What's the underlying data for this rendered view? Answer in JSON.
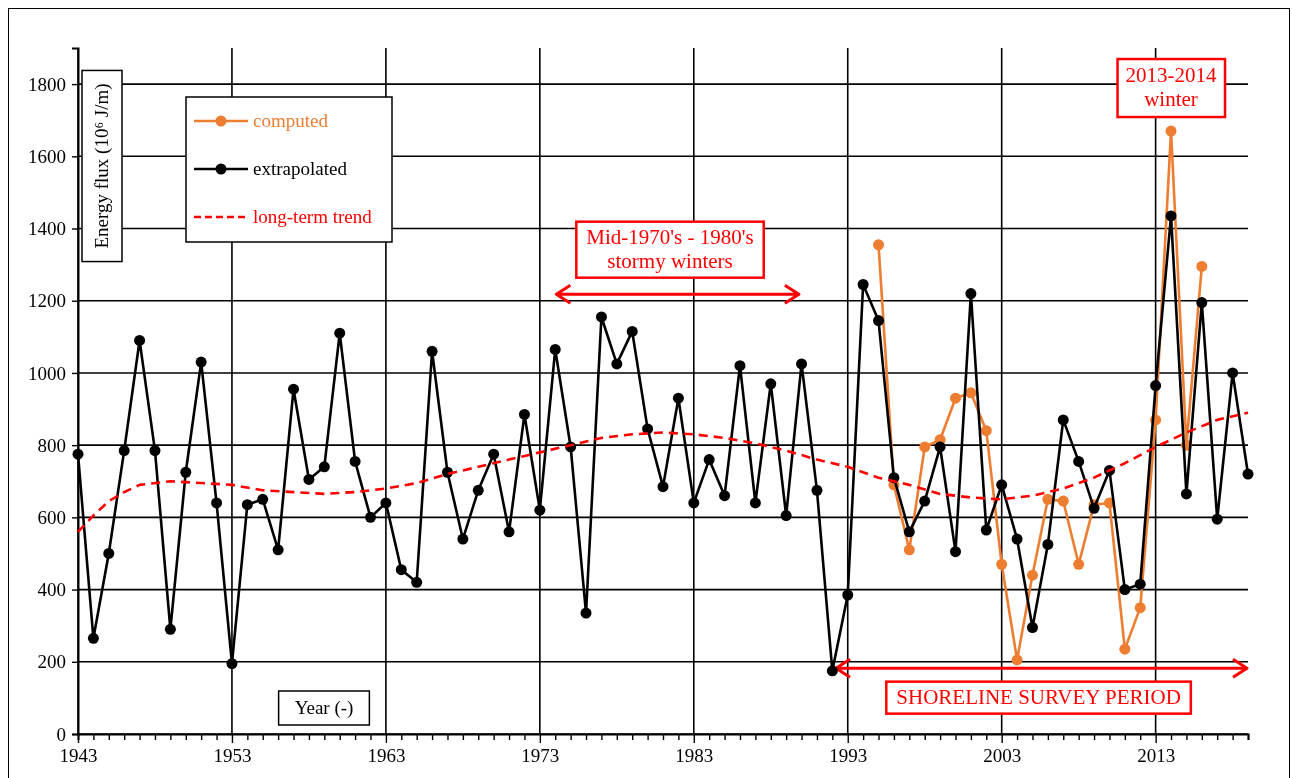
{
  "chart_data": {
    "type": "line",
    "xlabel": "Year (-)",
    "ylabel": "Energy flux (10⁶ J/m)",
    "xlim": [
      1943,
      2019
    ],
    "xticks": [
      1943,
      {
        "value": 1944,
        "label": null
      },
      {
        "value": 1945,
        "label": null
      },
      {
        "value": 1946,
        "label": null
      },
      {
        "value": 1947,
        "label": null
      },
      {
        "value": 1948,
        "label": null
      },
      {
        "value": 1949,
        "label": null
      },
      {
        "value": 1950,
        "label": null
      },
      {
        "value": 1951,
        "label": null
      },
      {
        "value": 1952,
        "label": null
      },
      1953,
      {
        "value": 1954,
        "label": null
      },
      {
        "value": 1955,
        "label": null
      },
      {
        "value": 1956,
        "label": null
      },
      {
        "value": 1957,
        "label": null
      },
      {
        "value": 1958,
        "label": null
      },
      {
        "value": 1959,
        "label": null
      },
      {
        "value": 1960,
        "label": null
      },
      {
        "value": 1961,
        "label": null
      },
      {
        "value": 1962,
        "label": null
      },
      1963,
      {
        "value": 1964,
        "label": null
      },
      {
        "value": 1965,
        "label": null
      },
      {
        "value": 1966,
        "label": null
      },
      {
        "value": 1967,
        "label": null
      },
      {
        "value": 1968,
        "label": null
      },
      {
        "value": 1969,
        "label": null
      },
      {
        "value": 1970,
        "label": null
      },
      {
        "value": 1971,
        "label": null
      },
      {
        "value": 1972,
        "label": null
      },
      1973,
      {
        "value": 1974,
        "label": null
      },
      {
        "value": 1975,
        "label": null
      },
      {
        "value": 1976,
        "label": null
      },
      {
        "value": 1977,
        "label": null
      },
      {
        "value": 1978,
        "label": null
      },
      {
        "value": 1979,
        "label": null
      },
      {
        "value": 1980,
        "label": null
      },
      {
        "value": 1981,
        "label": null
      },
      {
        "value": 1982,
        "label": null
      },
      1983,
      {
        "value": 1984,
        "label": null
      },
      {
        "value": 1985,
        "label": null
      },
      {
        "value": 1986,
        "label": null
      },
      {
        "value": 1987,
        "label": null
      },
      {
        "value": 1988,
        "label": null
      },
      {
        "value": 1989,
        "label": null
      },
      {
        "value": 1990,
        "label": null
      },
      {
        "value": 1991,
        "label": null
      },
      {
        "value": 1992,
        "label": null
      },
      1993,
      {
        "value": 1994,
        "label": null
      },
      {
        "value": 1995,
        "label": null
      },
      {
        "value": 1996,
        "label": null
      },
      {
        "value": 1997,
        "label": null
      },
      {
        "value": 1998,
        "label": null
      },
      {
        "value": 1999,
        "label": null
      },
      {
        "value": 2000,
        "label": null
      },
      {
        "value": 2001,
        "label": null
      },
      {
        "value": 2002,
        "label": null
      },
      2003,
      {
        "value": 2004,
        "label": null
      },
      {
        "value": 2005,
        "label": null
      },
      {
        "value": 2006,
        "label": null
      },
      {
        "value": 2007,
        "label": null
      },
      {
        "value": 2008,
        "label": null
      },
      {
        "value": 2009,
        "label": null
      },
      {
        "value": 2010,
        "label": null
      },
      {
        "value": 2011,
        "label": null
      },
      {
        "value": 2012,
        "label": null
      },
      2013,
      {
        "value": 2014,
        "label": null
      },
      {
        "value": 2015,
        "label": null
      },
      {
        "value": 2016,
        "label": null
      },
      {
        "value": 2017,
        "label": null
      },
      {
        "value": 2018,
        "label": null
      },
      {
        "value": 2019,
        "label": null
      }
    ],
    "ylim": [
      0,
      1900
    ],
    "yticks": [
      0,
      200,
      400,
      600,
      800,
      1000,
      1200,
      1400,
      1600,
      1800
    ],
    "grid": true,
    "legend": "top left",
    "series": [
      {
        "name": "computed",
        "color": "#ed7d31",
        "marker": "circle",
        "line_style": "solid",
        "x": [
          1995,
          1996,
          1997,
          1998,
          1999,
          2000,
          2001,
          2002,
          2003,
          2004,
          2005,
          2006,
          2007,
          2008,
          2009,
          2010,
          2011,
          2012,
          2013,
          2014,
          2015,
          2016
        ],
        "values": [
          1355,
          690,
          510,
          795,
          815,
          930,
          945,
          840,
          470,
          205,
          440,
          650,
          645,
          470,
          635,
          640,
          235,
          350,
          870,
          1670,
          800,
          1295
        ]
      },
      {
        "name": "extrapolated",
        "color": "#000000",
        "marker": "circle",
        "line_style": "solid",
        "x": [
          1943,
          1944,
          1945,
          1946,
          1947,
          1948,
          1949,
          1950,
          1951,
          1952,
          1953,
          1954,
          1955,
          1956,
          1957,
          1958,
          1959,
          1960,
          1961,
          1962,
          1963,
          1964,
          1965,
          1966,
          1967,
          1968,
          1969,
          1970,
          1971,
          1972,
          1973,
          1974,
          1975,
          1976,
          1977,
          1978,
          1979,
          1980,
          1981,
          1982,
          1983,
          1984,
          1985,
          1986,
          1987,
          1988,
          1989,
          1990,
          1991,
          1992,
          1993,
          1994,
          1995,
          1996,
          1997,
          1998,
          1999,
          2000,
          2001,
          2002,
          2003,
          2004,
          2005,
          2006,
          2007,
          2008,
          2009,
          2010,
          2011,
          2012,
          2013,
          2014,
          2015,
          2016,
          2017,
          2018,
          2019
        ],
        "values": [
          775,
          265,
          500,
          785,
          1090,
          785,
          290,
          725,
          1030,
          640,
          195,
          635,
          650,
          510,
          955,
          705,
          740,
          1110,
          755,
          600,
          640,
          455,
          420,
          1060,
          725,
          540,
          675,
          775,
          560,
          885,
          620,
          1065,
          795,
          335,
          1155,
          1025,
          1115,
          845,
          685,
          930,
          640,
          760,
          660,
          1020,
          640,
          970,
          605,
          1025,
          675,
          175,
          385,
          1245,
          1145,
          710,
          560,
          645,
          795,
          505,
          1220,
          565,
          690,
          540,
          295,
          525,
          870,
          755,
          625,
          730,
          400,
          415,
          965,
          1435,
          665,
          1195,
          595,
          1000,
          720
        ]
      },
      {
        "name": "long-term trend",
        "color": "#ff0000",
        "marker": "none",
        "line_style": "dashed",
        "x": [
          1943,
          1944,
          1945,
          1946,
          1947,
          1949,
          1951,
          1953,
          1955,
          1957,
          1959,
          1961,
          1963,
          1965,
          1967,
          1969,
          1971,
          1973,
          1975,
          1977,
          1979,
          1981,
          1983,
          1985,
          1987,
          1989,
          1991,
          1993,
          1995,
          1997,
          1999,
          2001,
          2003,
          2005,
          2007,
          2009,
          2011,
          2013,
          2015,
          2017,
          2019
        ],
        "values": [
          560,
          605,
          645,
          670,
          690,
          700,
          695,
          690,
          675,
          670,
          665,
          670,
          680,
          695,
          720,
          740,
          760,
          780,
          800,
          820,
          830,
          835,
          830,
          820,
          805,
          785,
          760,
          740,
          710,
          690,
          665,
          655,
          650,
          660,
          680,
          710,
          750,
          795,
          835,
          870,
          890
        ]
      }
    ],
    "annotations": [
      "Mid-1970's - 1980's\nstormy winters",
      "SHORELINE SURVEY PERIOD",
      {
        "text": "2013-2014\nwinter",
        "x": 2014,
        "y": 1670
      }
    ]
  }
}
